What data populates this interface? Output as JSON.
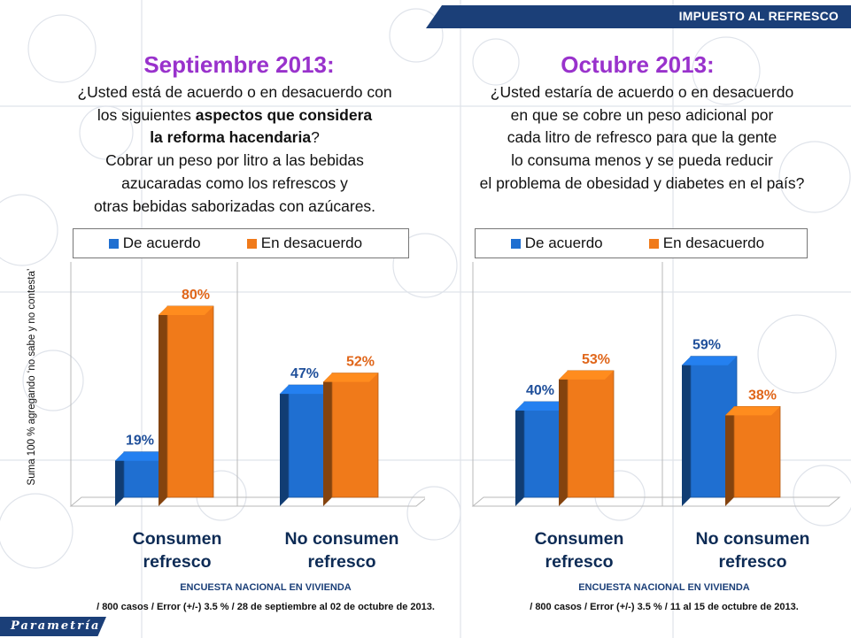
{
  "header": {
    "title": "IMPUESTO AL REFRESCO"
  },
  "brand": {
    "label": "Parametría"
  },
  "side_note": "Suma 100 % agregando ‘no sabe y no contesta’",
  "colors": {
    "agree": "#1f6fd1",
    "disagree": "#f07a1a",
    "title": "#9932cc",
    "navy": "#1b3f78"
  },
  "left": {
    "title": "Septiembre 2013:",
    "question_lines": [
      "¿Usted está de acuerdo o en desacuerdo con",
      "los siguientes ",
      "aspectos que considera",
      "la reforma hacendaria",
      "?",
      "Cobrar un peso por litro a las bebidas",
      "azucaradas como los refrescos y",
      "otras bebidas saborizadas con azúcares."
    ],
    "legend": {
      "agree": "De acuerdo",
      "disagree": "En desacuerdo"
    },
    "categories": [
      {
        "l1": "Consumen",
        "l2": "refresco"
      },
      {
        "l1": "No consumen",
        "l2": "refresco"
      }
    ],
    "footer": {
      "line1": "ENCUESTA NACIONAL EN VIVIENDA",
      "line2": "/ 800 casos / Error (+/-) 3.5 % / 28 de septiembre al 02 de octubre de 2013."
    }
  },
  "right": {
    "title": "Octubre 2013:",
    "question_lines": [
      "¿Usted estaría de acuerdo o en desacuerdo",
      "en que se cobre un peso adicional por",
      "cada litro de refresco para que la gente",
      "lo consuma menos y se pueda reducir",
      "el problema de obesidad y diabetes en el país?"
    ],
    "legend": {
      "agree": "De acuerdo",
      "disagree": "En desacuerdo"
    },
    "categories": [
      {
        "l1": "Consumen",
        "l2": "refresco"
      },
      {
        "l1": "No consumen",
        "l2": "refresco"
      }
    ],
    "footer": {
      "line1": "ENCUESTA NACIONAL EN VIVIENDA",
      "line2": "/ 800 casos / Error (+/-) 3.5 % / 11 al 15 de octubre de 2013."
    }
  },
  "chart_data": [
    {
      "type": "bar",
      "title": "Septiembre 2013:",
      "categories": [
        "Consumen refresco",
        "No consumen refresco"
      ],
      "series": [
        {
          "name": "De acuerdo",
          "values": [
            19,
            47
          ],
          "labels": [
            "19%",
            "47%"
          ]
        },
        {
          "name": "En desacuerdo",
          "values": [
            80,
            52
          ],
          "labels": [
            "80%",
            "52%"
          ]
        }
      ],
      "ylim": [
        0,
        100
      ],
      "legend": "top"
    },
    {
      "type": "bar",
      "title": "Octubre 2013:",
      "categories": [
        "Consumen refresco",
        "No consumen refresco"
      ],
      "series": [
        {
          "name": "De acuerdo",
          "values": [
            40,
            59
          ],
          "labels": [
            "40%",
            "59%"
          ]
        },
        {
          "name": "En desacuerdo",
          "values": [
            53,
            38
          ],
          "labels": [
            "53%",
            "38%"
          ]
        }
      ],
      "ylim": [
        0,
        100
      ],
      "legend": "top"
    }
  ]
}
